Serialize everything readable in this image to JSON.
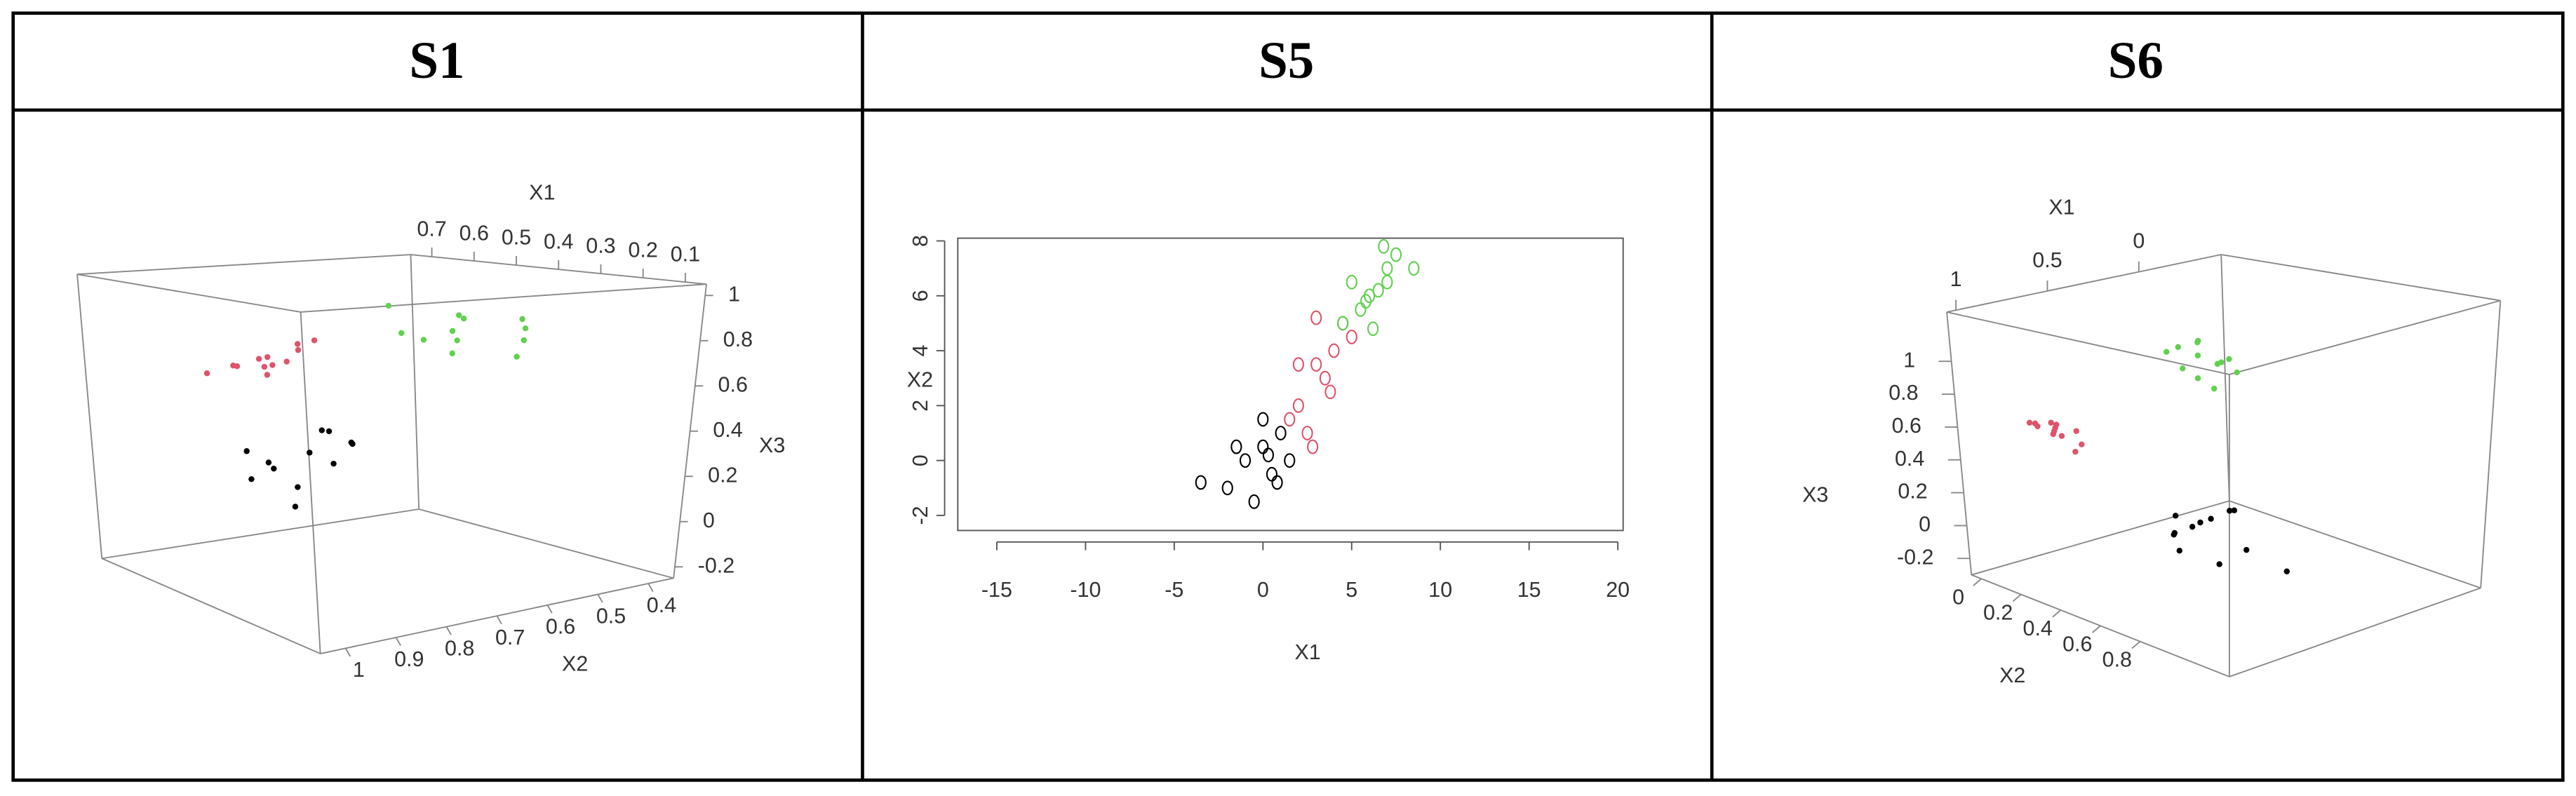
{
  "headers": [
    "S1",
    "S5",
    "S6"
  ],
  "chart_data": [
    {
      "type": "scatter3d",
      "xlabel": "X1",
      "ylabel": "X2",
      "zlabel": "X3",
      "xlim": [
        0.75,
        0.05
      ],
      "ylim": [
        1.05,
        0.35
      ],
      "zlim": [
        -0.25,
        1.05
      ],
      "xticks": [
        0.7,
        0.6,
        0.5,
        0.4,
        0.3,
        0.2,
        0.1
      ],
      "yticks": [
        1,
        0.9,
        0.8,
        0.7,
        0.6,
        0.5,
        0.4
      ],
      "zticks": [
        1,
        0.8,
        0.6,
        0.4,
        0.2,
        0,
        -0.2
      ],
      "series": [
        {
          "color": "#61d04f",
          "x": [
            0.45,
            0.4,
            0.35,
            0.5,
            0.3,
            0.42,
            0.38,
            0.48,
            0.33,
            0.44,
            0.36,
            0.52
          ],
          "y": [
            0.5,
            0.55,
            0.45,
            0.6,
            0.5,
            0.4,
            0.62,
            0.48,
            0.58,
            0.52,
            0.44,
            0.56
          ],
          "z": [
            0.85,
            0.8,
            0.75,
            0.9,
            0.7,
            0.82,
            0.78,
            0.72,
            0.88,
            0.68,
            0.8,
            0.76
          ]
        },
        {
          "color": "#df536b",
          "x": [
            0.7,
            0.72,
            0.68,
            0.74,
            0.66,
            0.7,
            0.73,
            0.69,
            0.71,
            0.67,
            0.72,
            0.7
          ],
          "y": [
            0.7,
            0.75,
            0.65,
            0.8,
            0.72,
            0.6,
            0.68,
            0.78,
            0.7,
            0.74,
            0.62,
            0.66
          ],
          "z": [
            0.62,
            0.58,
            0.65,
            0.55,
            0.6,
            0.68,
            0.52,
            0.6,
            0.57,
            0.63,
            0.66,
            0.59
          ]
        },
        {
          "color": "#000000",
          "x": [
            0.45,
            0.5,
            0.4,
            0.48,
            0.42,
            0.46,
            0.52,
            0.38,
            0.44,
            0.5,
            0.47,
            0.41
          ],
          "y": [
            0.8,
            0.85,
            0.75,
            0.9,
            0.78,
            0.82,
            0.88,
            0.8,
            0.72,
            0.84,
            0.76,
            0.86
          ],
          "z": [
            0.3,
            0.25,
            0.35,
            0.2,
            0.4,
            0.15,
            0.3,
            0.28,
            0.32,
            0.22,
            0.38,
            0.1
          ]
        }
      ]
    },
    {
      "type": "scatter",
      "xlabel": "X1",
      "ylabel": "X2",
      "xlim": [
        -17.2,
        20.3
      ],
      "ylim": [
        -2.55,
        8.1
      ],
      "xticks": [
        -15,
        -10,
        -5,
        0,
        5,
        10,
        15,
        20
      ],
      "yticks": [
        -2,
        0,
        2,
        4,
        6,
        8
      ],
      "series": [
        {
          "color": "#000000",
          "x": [
            -1,
            0,
            0.5,
            -2,
            1,
            0,
            -0.5,
            1.5,
            0.3,
            -1.5,
            0.8,
            -3.5
          ],
          "y": [
            0,
            0.5,
            -0.5,
            -1,
            1,
            1.5,
            -1.5,
            0,
            0.2,
            0.5,
            -0.8,
            -0.8
          ]
        },
        {
          "color": "#df536b",
          "x": [
            3,
            2,
            4,
            2.5,
            3.5,
            1.5,
            4.5,
            3,
            2,
            3.8,
            2.8,
            5
          ],
          "y": [
            3.5,
            2,
            4,
            1,
            3,
            1.5,
            5,
            5.2,
            3.5,
            2.5,
            0.5,
            4.5
          ]
        },
        {
          "color": "#61d04f",
          "x": [
            6,
            5.5,
            7,
            6.5,
            5,
            7.5,
            6.2,
            5.8,
            7,
            4.5,
            6.8,
            8.5
          ],
          "y": [
            6,
            5.5,
            7,
            6.2,
            6.5,
            7.5,
            4.8,
            5.8,
            6.5,
            5,
            7.8,
            7
          ]
        }
      ]
    },
    {
      "type": "scatter3d",
      "xlabel": "X1",
      "ylabel": "X2",
      "zlabel": "X3",
      "xlim": [
        1.05,
        -0.45
      ],
      "ylim": [
        -0.05,
        1.25
      ],
      "zlim": [
        -0.3,
        1.3
      ],
      "xticks": [
        1,
        0.5,
        0
      ],
      "yticks": [
        0,
        0.2,
        0.4,
        0.6,
        0.8
      ],
      "zticks": [
        1,
        0.8,
        0.6,
        0.4,
        0.2,
        0,
        -0.2
      ],
      "series": [
        {
          "color": "#000000",
          "x": [
            0.5,
            0.45,
            0.55,
            0.4,
            0.6,
            0.48,
            0.52,
            0.35,
            0.58,
            0.42,
            0.5,
            0.3
          ],
          "y": [
            0.6,
            0.65,
            0.55,
            0.7,
            0.62,
            0.5,
            0.75,
            0.68,
            0.58,
            0.8,
            0.64,
            0.9
          ],
          "z": [
            0.1,
            0.15,
            0.05,
            0.2,
            0.0,
            0.12,
            -0.05,
            0.18,
            0.08,
            0.02,
            0.14,
            -0.1
          ]
        },
        {
          "color": "#df536b",
          "x": [
            0.8,
            0.85,
            0.75,
            0.9,
            0.7,
            0.82,
            0.78,
            0.88,
            0.72,
            0.8,
            0.86,
            0.76
          ],
          "y": [
            0.2,
            0.25,
            0.15,
            0.3,
            0.22,
            0.1,
            0.28,
            0.18,
            0.26,
            0.12,
            0.24,
            0.2
          ],
          "z": [
            0.6,
            0.65,
            0.55,
            0.7,
            0.58,
            0.62,
            0.5,
            0.66,
            0.52,
            0.6,
            0.68,
            0.56
          ]
        },
        {
          "color": "#61d04f",
          "x": [
            0.1,
            0.05,
            0.15,
            0,
            0.12,
            0.08,
            0.02,
            0.18,
            0.06,
            0.1,
            0.14,
            0.04
          ],
          "y": [
            0.3,
            0.35,
            0.25,
            0.4,
            0.32,
            0.28,
            0.38,
            0.22,
            0.34,
            0.3,
            0.26,
            0.36
          ],
          "z": [
            0.9,
            0.85,
            0.95,
            0.8,
            1.0,
            0.75,
            0.88,
            0.92,
            0.7,
            0.98,
            0.82,
            0.86
          ]
        }
      ]
    }
  ]
}
